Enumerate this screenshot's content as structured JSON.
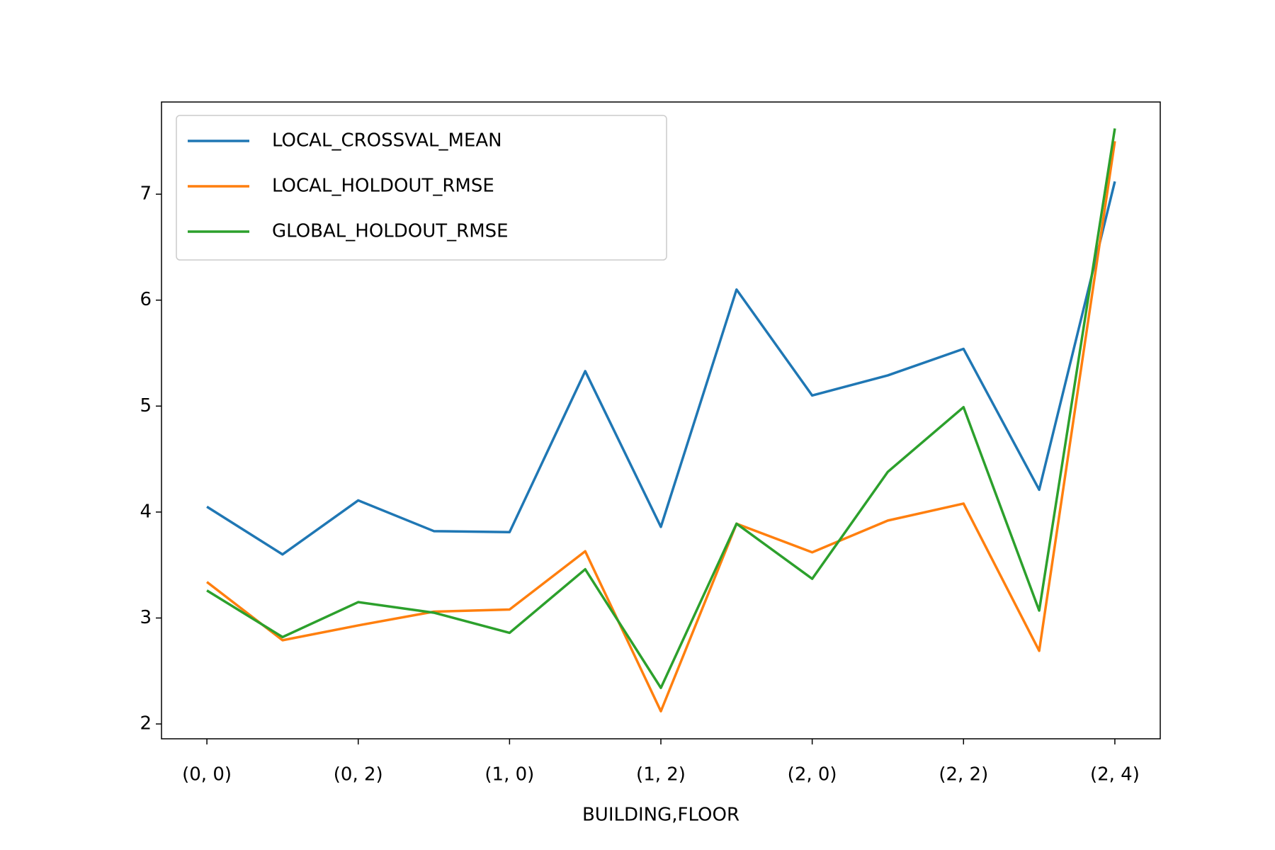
{
  "chart_data": {
    "type": "line",
    "xlabel": "BUILDING,FLOOR",
    "categories": [
      "(0, 0)",
      null,
      "(0, 2)",
      null,
      "(1, 0)",
      null,
      "(1, 2)",
      null,
      "(2, 0)",
      null,
      "(2, 2)",
      null,
      "(2, 4)"
    ],
    "series": [
      {
        "name": "LOCAL_CROSSVAL_MEAN",
        "color": "#1f77b4",
        "values": [
          4.05,
          3.6,
          4.11,
          3.82,
          3.81,
          5.33,
          3.86,
          6.1,
          5.1,
          5.29,
          5.54,
          4.21,
          7.12
        ]
      },
      {
        "name": "LOCAL_HOLDOUT_RMSE",
        "color": "#ff7f0e",
        "values": [
          3.34,
          2.79,
          2.93,
          3.06,
          3.08,
          3.63,
          2.12,
          3.89,
          3.62,
          3.92,
          4.08,
          2.69,
          7.5
        ]
      },
      {
        "name": "GLOBAL_HOLDOUT_RMSE",
        "color": "#2ca02c",
        "values": [
          3.26,
          2.82,
          3.15,
          3.05,
          2.86,
          3.46,
          2.34,
          3.89,
          3.37,
          4.38,
          4.99,
          3.07,
          7.62
        ]
      }
    ],
    "ylim": [
      1.86,
      7.87
    ],
    "yticks": [
      2,
      3,
      4,
      5,
      6,
      7
    ],
    "legend": "upper left"
  }
}
